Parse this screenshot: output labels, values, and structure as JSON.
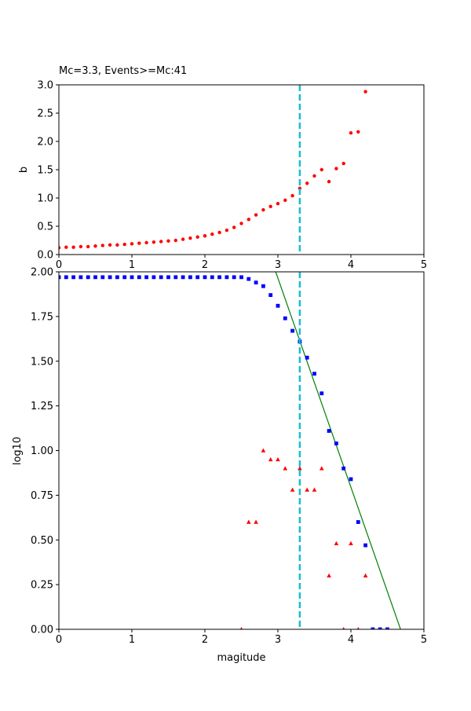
{
  "chart_data": [
    {
      "type": "scatter",
      "title": "Mc=3.3, Events>=Mc:41",
      "xlabel": "",
      "ylabel": "b",
      "xlim": [
        0,
        5
      ],
      "ylim": [
        0,
        3
      ],
      "xticks": [
        "0",
        "1",
        "2",
        "3",
        "4",
        "5"
      ],
      "yticks": [
        "0.0",
        "0.5",
        "1.0",
        "1.5",
        "2.0",
        "2.5",
        "3.0"
      ],
      "mc_line": {
        "x": 3.3,
        "color": "#17becf"
      },
      "series": [
        {
          "color": "#ff0000",
          "marker": "circle",
          "x": [
            0.0,
            0.1,
            0.2,
            0.3,
            0.4,
            0.5,
            0.6,
            0.7,
            0.8,
            0.9,
            1.0,
            1.1,
            1.2,
            1.3,
            1.4,
            1.5,
            1.6,
            1.7,
            1.8,
            1.9,
            2.0,
            2.1,
            2.2,
            2.3,
            2.4,
            2.5,
            2.6,
            2.7,
            2.8,
            2.9,
            3.0,
            3.1,
            3.2,
            3.3,
            3.4,
            3.5,
            3.6,
            3.7,
            3.8,
            3.9,
            4.0,
            4.1,
            4.2
          ],
          "y": [
            0.12,
            0.13,
            0.13,
            0.14,
            0.14,
            0.15,
            0.16,
            0.17,
            0.17,
            0.18,
            0.19,
            0.2,
            0.21,
            0.22,
            0.23,
            0.24,
            0.25,
            0.27,
            0.29,
            0.31,
            0.33,
            0.36,
            0.39,
            0.43,
            0.48,
            0.55,
            0.62,
            0.7,
            0.79,
            0.85,
            0.9,
            0.96,
            1.04,
            1.17,
            1.26,
            1.39,
            1.5,
            1.29,
            1.52,
            1.61,
            2.15,
            2.17,
            2.88
          ]
        }
      ]
    },
    {
      "type": "scatter",
      "title": "",
      "xlabel": "magitude",
      "ylabel": "log10",
      "xlim": [
        0,
        5
      ],
      "ylim": [
        0,
        2
      ],
      "xticks": [
        "0",
        "1",
        "2",
        "3",
        "4",
        "5"
      ],
      "yticks": [
        "0.00",
        "0.25",
        "0.50",
        "0.75",
        "1.00",
        "1.25",
        "1.50",
        "1.75",
        "2.00"
      ],
      "mc_line": {
        "x": 3.3,
        "color": "#17becf"
      },
      "fit_line": {
        "color": "#008000",
        "x": [
          2.97,
          4.68
        ],
        "y": [
          2.0,
          0.0
        ]
      },
      "series": [
        {
          "color": "#0000ff",
          "marker": "square",
          "x": [
            0.0,
            0.1,
            0.2,
            0.3,
            0.4,
            0.5,
            0.6,
            0.7,
            0.8,
            0.9,
            1.0,
            1.1,
            1.2,
            1.3,
            1.4,
            1.5,
            1.6,
            1.7,
            1.8,
            1.9,
            2.0,
            2.1,
            2.2,
            2.3,
            2.4,
            2.5,
            2.6,
            2.7,
            2.8,
            2.9,
            3.0,
            3.1,
            3.2,
            3.3,
            3.4,
            3.5,
            3.6,
            3.7,
            3.8,
            3.9,
            4.0,
            4.1,
            4.2,
            4.3,
            4.4,
            4.5
          ],
          "y": [
            1.97,
            1.97,
            1.97,
            1.97,
            1.97,
            1.97,
            1.97,
            1.97,
            1.97,
            1.97,
            1.97,
            1.97,
            1.97,
            1.97,
            1.97,
            1.97,
            1.97,
            1.97,
            1.97,
            1.97,
            1.97,
            1.97,
            1.97,
            1.97,
            1.97,
            1.97,
            1.96,
            1.94,
            1.92,
            1.87,
            1.81,
            1.74,
            1.67,
            1.61,
            1.52,
            1.43,
            1.32,
            1.11,
            1.04,
            0.9,
            0.84,
            0.6,
            0.47,
            0.0,
            0.0,
            0.0
          ]
        },
        {
          "color": "#ff0000",
          "marker": "triangle",
          "x": [
            2.5,
            2.6,
            2.7,
            2.8,
            2.9,
            3.0,
            3.1,
            3.2,
            3.3,
            3.4,
            3.5,
            3.6,
            3.7,
            3.8,
            3.9,
            4.0,
            4.1,
            4.2
          ],
          "y": [
            0.0,
            0.6,
            0.6,
            1.0,
            0.95,
            0.95,
            0.9,
            0.78,
            0.9,
            0.78,
            0.78,
            0.9,
            0.3,
            0.48,
            0.0,
            0.48,
            0.0,
            0.3
          ]
        }
      ]
    }
  ]
}
